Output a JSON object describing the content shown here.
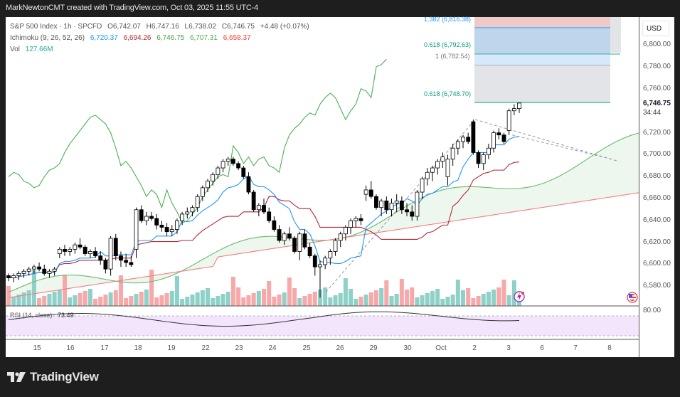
{
  "header": {
    "attribution": "MarkNewtonCMT created with TradingView.com, Oct 03, 2025 11:55 UTC-4"
  },
  "legend": {
    "symbol": "S&P 500 Index · 1h · SPCFD",
    "open": "O6,742.07",
    "high": "H6,747.16",
    "low": "L6,738.02",
    "close": "C6,746.75",
    "change": "+4.48 (+0.07%)",
    "ichimoku_label": "Ichimoku (9, 26, 52, 26)",
    "ichimoku_values": [
      "6,720.37",
      "6,694.26",
      "6,746.75",
      "6,707.31",
      "6,658.37"
    ],
    "ichimoku_colors": [
      "#2196f3",
      "#b22833",
      "#43a047",
      "#4caf50",
      "#f44336"
    ],
    "vol_label": "Vol",
    "vol_value": "127.66M",
    "rsi_label": "RSI (14, close)",
    "rsi_value": "73.49"
  },
  "price_axis": {
    "currency": "USD",
    "ticks": [
      "6,800.00",
      "6,780.00",
      "6,760.00",
      "6,720.00",
      "6,700.00",
      "6,680.00",
      "6,660.00",
      "6,640.00",
      "6,620.00",
      "6,600.00",
      "6,580.00"
    ],
    "current_price": "6,746.75",
    "countdown": "34:44",
    "rsi_tick": "80.00"
  },
  "fib_levels": [
    {
      "label": "1.382 (6,816.38)",
      "color": "#2196f3"
    },
    {
      "label": "0.618 (6,792.63)",
      "color": "#089981"
    },
    {
      "label": "1 (6,782.54)",
      "color": "#787b86"
    },
    {
      "label": "0.618 (6,748.70)",
      "color": "#089981"
    }
  ],
  "time_axis": {
    "labels": [
      "15",
      "16",
      "17",
      "18",
      "19",
      "22",
      "23",
      "24",
      "25",
      "26",
      "29",
      "30",
      "Oct",
      "2",
      "3",
      "6",
      "7",
      "8"
    ]
  },
  "branding": {
    "name": "TradingView"
  },
  "chart_data": {
    "type": "candlestick",
    "title": "S&P 500 Index · 1h · SPCFD",
    "xlabel": "",
    "ylabel": "USD",
    "ylim": [
      6565,
      6825
    ],
    "grid": false,
    "x": [
      "15",
      "16",
      "17",
      "18",
      "19",
      "22",
      "23",
      "24",
      "25",
      "26",
      "29",
      "30",
      "Oct",
      "2",
      "3",
      "6",
      "7",
      "8"
    ],
    "indicators": [
      "Ichimoku (9, 26, 52, 26)",
      "Volume",
      "RSI (14, close)"
    ],
    "last": {
      "open": 6742.07,
      "high": 6747.16,
      "low": 6738.02,
      "close": 6746.75,
      "change": 4.48,
      "change_pct": 0.07
    },
    "ichimoku_last": {
      "conversion": 6720.37,
      "base": 6694.26,
      "lagging": 6746.75,
      "leading_a": 6707.31,
      "leading_b": 6658.37
    },
    "volume_last": "127.66M",
    "rsi_last": 73.49,
    "fibonacci": [
      {
        "ratio": 1.382,
        "price": 6816.38
      },
      {
        "ratio": 0.618,
        "price": 6792.63
      },
      {
        "ratio": 1,
        "price": 6782.54
      },
      {
        "ratio": 0.618,
        "price": 6748.7
      }
    ],
    "candles_approx": [
      [
        6590,
        6592,
        6585,
        6588
      ],
      [
        6588,
        6592,
        6584,
        6590
      ],
      [
        6590,
        6594,
        6586,
        6592
      ],
      [
        6592,
        6596,
        6588,
        6594
      ],
      [
        6594,
        6598,
        6590,
        6596
      ],
      [
        6596,
        6600,
        6592,
        6598
      ],
      [
        6598,
        6602,
        6594,
        6596
      ],
      [
        6596,
        6600,
        6590,
        6592
      ],
      [
        6592,
        6596,
        6588,
        6594
      ],
      [
        6594,
        6598,
        6590,
        6596
      ],
      [
        6610,
        6616,
        6606,
        6614
      ],
      [
        6614,
        6618,
        6608,
        6612
      ],
      [
        6612,
        6616,
        6608,
        6614
      ],
      [
        6614,
        6620,
        6610,
        6618
      ],
      [
        6618,
        6624,
        6614,
        6616
      ],
      [
        6616,
        6618,
        6608,
        6610
      ],
      [
        6610,
        6614,
        6606,
        6612
      ],
      [
        6612,
        6616,
        6606,
        6608
      ],
      [
        6608,
        6612,
        6600,
        6604
      ],
      [
        6604,
        6606,
        6592,
        6596
      ],
      [
        6596,
        6626,
        6590,
        6624
      ],
      [
        6624,
        6628,
        6604,
        6608
      ],
      [
        6608,
        6612,
        6598,
        6604
      ],
      [
        6604,
        6610,
        6598,
        6602
      ],
      [
        6602,
        6608,
        6598,
        6600
      ],
      [
        6614,
        6652,
        6606,
        6650
      ],
      [
        6650,
        6654,
        6638,
        6640
      ],
      [
        6640,
        6648,
        6636,
        6644
      ],
      [
        6644,
        6648,
        6640,
        6642
      ],
      [
        6642,
        6646,
        6632,
        6636
      ],
      [
        6636,
        6640,
        6630,
        6634
      ],
      [
        6634,
        6638,
        6626,
        6630
      ],
      [
        6630,
        6636,
        6626,
        6632
      ],
      [
        6632,
        6642,
        6628,
        6640
      ],
      [
        6640,
        6648,
        6636,
        6646
      ],
      [
        6646,
        6652,
        6642,
        6648
      ],
      [
        6648,
        6654,
        6644,
        6652
      ],
      [
        6652,
        6664,
        6648,
        6662
      ],
      [
        6662,
        6672,
        6658,
        6670
      ],
      [
        6670,
        6678,
        6666,
        6676
      ],
      [
        6676,
        6684,
        6672,
        6682
      ],
      [
        6682,
        6690,
        6678,
        6688
      ],
      [
        6688,
        6696,
        6684,
        6694
      ],
      [
        6694,
        6698,
        6690,
        6696
      ],
      [
        6696,
        6698,
        6690,
        6692
      ],
      [
        6692,
        6694,
        6686,
        6688
      ],
      [
        6688,
        6690,
        6678,
        6680
      ],
      [
        6680,
        6684,
        6664,
        6666
      ],
      [
        6666,
        6668,
        6648,
        6650
      ],
      [
        6650,
        6656,
        6644,
        6654
      ],
      [
        6654,
        6660,
        6646,
        6648
      ],
      [
        6648,
        6652,
        6638,
        6640
      ],
      [
        6640,
        6644,
        6630,
        6632
      ],
      [
        6632,
        6636,
        6620,
        6622
      ],
      [
        6622,
        6630,
        6618,
        6628
      ],
      [
        6628,
        6634,
        6622,
        6624
      ],
      [
        6624,
        6626,
        6610,
        6612
      ],
      [
        6612,
        6630,
        6604,
        6628
      ],
      [
        6628,
        6632,
        6614,
        6616
      ],
      [
        6616,
        6620,
        6606,
        6608
      ],
      [
        6608,
        6610,
        6590,
        6598
      ],
      [
        6598,
        6604,
        6570,
        6600
      ],
      [
        6600,
        6608,
        6596,
        6606
      ],
      [
        6606,
        6614,
        6600,
        6612
      ],
      [
        6612,
        6624,
        6608,
        6622
      ],
      [
        6622,
        6630,
        6616,
        6628
      ],
      [
        6628,
        6636,
        6622,
        6634
      ],
      [
        6634,
        6642,
        6628,
        6640
      ],
      [
        6640,
        6644,
        6634,
        6642
      ],
      [
        6642,
        6646,
        6636,
        6640
      ],
      [
        6664,
        6672,
        6658,
        6668
      ],
      [
        6668,
        6676,
        6660,
        6662
      ],
      [
        6662,
        6664,
        6650,
        6652
      ],
      [
        6652,
        6660,
        6644,
        6658
      ],
      [
        6658,
        6662,
        6646,
        6650
      ],
      [
        6650,
        6660,
        6644,
        6656
      ],
      [
        6656,
        6664,
        6648,
        6658
      ],
      [
        6658,
        6662,
        6646,
        6650
      ],
      [
        6650,
        6656,
        6644,
        6648
      ],
      [
        6648,
        6654,
        6640,
        6644
      ],
      [
        6644,
        6668,
        6640,
        6666
      ],
      [
        6666,
        6680,
        6660,
        6678
      ],
      [
        6678,
        6688,
        6672,
        6684
      ],
      [
        6684,
        6690,
        6676,
        6688
      ],
      [
        6688,
        6696,
        6682,
        6694
      ],
      [
        6694,
        6702,
        6688,
        6698
      ],
      [
        6680,
        6700,
        6672,
        6696
      ],
      [
        6696,
        6710,
        6690,
        6706
      ],
      [
        6706,
        6714,
        6700,
        6712
      ],
      [
        6712,
        6718,
        6706,
        6716
      ],
      [
        6716,
        6720,
        6710,
        6712
      ],
      [
        6730,
        6732,
        6700,
        6702
      ],
      [
        6702,
        6704,
        6688,
        6692
      ],
      [
        6692,
        6702,
        6686,
        6700
      ],
      [
        6700,
        6710,
        6696,
        6706
      ],
      [
        6706,
        6722,
        6702,
        6720
      ],
      [
        6720,
        6724,
        6714,
        6718
      ],
      [
        6718,
        6720,
        6710,
        6712
      ],
      [
        6722,
        6742,
        6718,
        6740
      ],
      [
        6740,
        6746,
        6736,
        6742
      ],
      [
        6742,
        6747,
        6738,
        6747
      ]
    ]
  }
}
